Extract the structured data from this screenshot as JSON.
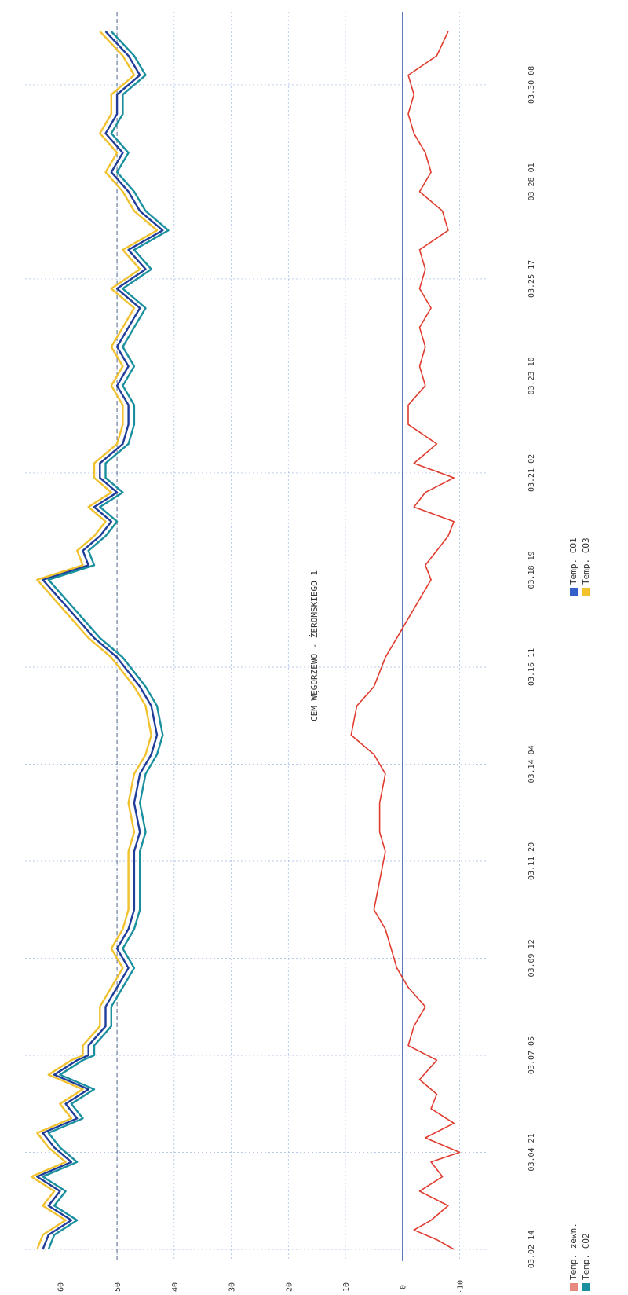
{
  "chart_data": {
    "type": "line",
    "title": "CEM WĘGORZEWO - ŻEROMSKIEGO 1",
    "orientation": "rotated-90",
    "x_tick_labels": [
      "03.02 14",
      "03.04 21",
      "03.07 05",
      "03.09 12",
      "03.11 20",
      "03.14 04",
      "03.16 11",
      "03.18 19",
      "03.21 02",
      "03.23 10",
      "03.25 17",
      "03.28 01",
      "03.30 08"
    ],
    "y_ticks": [
      60,
      50,
      40,
      30,
      20,
      10,
      0,
      -10
    ],
    "ylim": [
      -12,
      65
    ],
    "grid": true,
    "reference_lines": [
      50,
      0
    ],
    "legend_position": "bottom",
    "series": [
      {
        "name": "Temp. zewn.",
        "color": "#e03b2e",
        "key": "zewn",
        "x": [
          0.0,
          0.1,
          0.2,
          0.3,
          0.45,
          0.6,
          0.75,
          0.9,
          1.0,
          1.15,
          1.3,
          1.45,
          1.6,
          1.75,
          1.95,
          2.1,
          2.3,
          2.5,
          2.7,
          2.9,
          3.1,
          3.3,
          3.5,
          3.8,
          4.1,
          4.3,
          4.6,
          4.9,
          5.1,
          5.3,
          5.6,
          5.8,
          6.1,
          6.3,
          6.5,
          6.7,
          6.9,
          7.05,
          7.2,
          7.35,
          7.5,
          7.65,
          7.8,
          7.95,
          8.1,
          8.3,
          8.5,
          8.7,
          8.9,
          9.1,
          9.3,
          9.5,
          9.7,
          9.9,
          10.1,
          10.3,
          10.5,
          10.7,
          10.9,
          11.1,
          11.3,
          11.5,
          11.7,
          11.9,
          12.1,
          12.3,
          12.55
        ],
        "y": [
          -9,
          -6,
          -2,
          -5,
          -8,
          -3,
          -7,
          -5,
          -10,
          -4,
          -9,
          -5,
          -6,
          -3,
          -6,
          -1,
          -2,
          -4,
          -1,
          1,
          2,
          3,
          5,
          4,
          3,
          4,
          4,
          3,
          5,
          9,
          8,
          5,
          3,
          1,
          -1,
          -3,
          -5,
          -4,
          -6,
          -8,
          -9,
          -2,
          -4,
          -9,
          -2,
          -6,
          -1,
          -1,
          -4,
          -3,
          -4,
          -3,
          -5,
          -3,
          -4,
          -3,
          -8,
          -7,
          -3,
          -5,
          -4,
          -2,
          -1,
          -2,
          -1,
          -6,
          -8
        ]
      },
      {
        "name": "Temp. CO1",
        "color": "#1f3d99",
        "key": "co1",
        "x": [
          0.0,
          0.15,
          0.3,
          0.45,
          0.6,
          0.75,
          0.9,
          1.05,
          1.2,
          1.35,
          1.5,
          1.65,
          1.8,
          1.95,
          2.0,
          2.1,
          2.3,
          2.5,
          2.7,
          2.9,
          3.1,
          3.3,
          3.5,
          3.8,
          4.1,
          4.3,
          4.6,
          4.9,
          5.1,
          5.3,
          5.6,
          5.8,
          6.1,
          6.3,
          6.5,
          6.7,
          6.9,
          7.05,
          7.2,
          7.35,
          7.5,
          7.65,
          7.8,
          7.95,
          8.1,
          8.3,
          8.5,
          8.7,
          8.9,
          9.1,
          9.3,
          9.5,
          9.7,
          9.9,
          10.1,
          10.3,
          10.5,
          10.7,
          10.9,
          11.1,
          11.3,
          11.5,
          11.7,
          11.9,
          12.1,
          12.3,
          12.55
        ],
        "y": [
          63,
          62,
          58,
          62,
          60,
          64,
          58,
          61,
          63,
          57,
          59,
          55,
          61,
          57,
          55,
          55,
          52,
          52,
          50,
          48,
          50,
          48,
          47,
          47,
          47,
          46,
          47,
          46,
          44,
          43,
          44,
          46,
          50,
          54,
          57,
          60,
          63,
          55,
          56,
          53,
          51,
          54,
          50,
          53,
          53,
          49,
          48,
          48,
          50,
          48,
          50,
          48,
          46,
          50,
          45,
          48,
          42,
          46,
          48,
          51,
          49,
          52,
          50,
          50,
          46,
          48,
          52
        ]
      },
      {
        "name": "Temp. CO2",
        "color": "#1a8f9e",
        "key": "co2",
        "x": [
          0.0,
          0.15,
          0.3,
          0.45,
          0.6,
          0.75,
          0.9,
          1.05,
          1.2,
          1.35,
          1.5,
          1.65,
          1.8,
          1.95,
          2.0,
          2.1,
          2.3,
          2.5,
          2.7,
          2.9,
          3.1,
          3.3,
          3.5,
          3.8,
          4.1,
          4.3,
          4.6,
          4.9,
          5.1,
          5.3,
          5.6,
          5.8,
          6.1,
          6.3,
          6.5,
          6.7,
          6.9,
          7.05,
          7.2,
          7.35,
          7.5,
          7.65,
          7.8,
          7.95,
          8.1,
          8.3,
          8.5,
          8.7,
          8.9,
          9.1,
          9.3,
          9.5,
          9.7,
          9.9,
          10.1,
          10.3,
          10.5,
          10.7,
          10.9,
          11.1,
          11.3,
          11.5,
          11.7,
          11.9,
          12.1,
          12.3,
          12.55
        ],
        "y": [
          62,
          61,
          57,
          61,
          59,
          63,
          57,
          60,
          62,
          56,
          58,
          54,
          60,
          56,
          54,
          54,
          51,
          51,
          49,
          47,
          49,
          47,
          46,
          46,
          46,
          45,
          46,
          45,
          43,
          42,
          43,
          45,
          49,
          53,
          56,
          59,
          62,
          54,
          55,
          52,
          50,
          53,
          49,
          52,
          52,
          48,
          47,
          47,
          49,
          47,
          49,
          47,
          45,
          49,
          44,
          47,
          41,
          45,
          47,
          50,
          48,
          51,
          49,
          49,
          45,
          47,
          51
        ]
      },
      {
        "name": "Temp. CO3",
        "color": "#f2c12e",
        "key": "co3",
        "x": [
          0.0,
          0.15,
          0.3,
          0.45,
          0.6,
          0.75,
          0.9,
          1.05,
          1.2,
          1.35,
          1.5,
          1.65,
          1.8,
          1.95,
          2.0,
          2.1,
          2.3,
          2.5,
          2.7,
          2.9,
          3.1,
          3.3,
          3.5,
          3.8,
          4.1,
          4.3,
          4.6,
          4.9,
          5.1,
          5.3,
          5.6,
          5.8,
          6.1,
          6.3,
          6.5,
          6.7,
          6.9,
          7.05,
          7.2,
          7.35,
          7.5,
          7.65,
          7.8,
          7.95,
          8.1,
          8.3,
          8.5,
          8.7,
          8.9,
          9.1,
          9.3,
          9.5,
          9.7,
          9.9,
          10.1,
          10.3,
          10.5,
          10.7,
          10.9,
          11.1,
          11.3,
          11.5,
          11.7,
          11.9,
          12.1,
          12.3,
          12.55
        ],
        "y": [
          64,
          63,
          59,
          63,
          61,
          65,
          59,
          62,
          64,
          58,
          60,
          56,
          62,
          58,
          56,
          56,
          53,
          53,
          51,
          49,
          51,
          49,
          48,
          48,
          48,
          47,
          48,
          47,
          45,
          44,
          45,
          47,
          51,
          55,
          58,
          61,
          64,
          56,
          57,
          54,
          52,
          55,
          51,
          54,
          54,
          50,
          49,
          49,
          51,
          49,
          51,
          49,
          47,
          51,
          46,
          49,
          43,
          47,
          49,
          52,
          50,
          53,
          51,
          51,
          47,
          49,
          53
        ]
      }
    ],
    "legend": [
      {
        "label": "Temp. zewn.",
        "color": "#e8897f"
      },
      {
        "label": "Temp. CO2",
        "color": "#1a8f9e"
      },
      {
        "label": "Temp. CO1",
        "color": "#3461c9"
      },
      {
        "label": "Temp. CO3",
        "color": "#f2c12e"
      }
    ]
  }
}
